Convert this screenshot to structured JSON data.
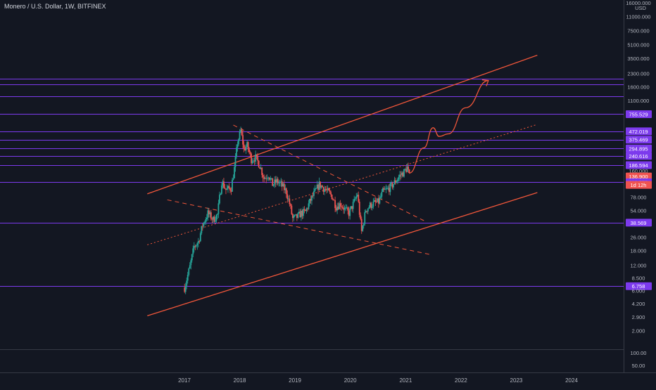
{
  "header": {
    "symbol_title": "Monero / U.S. Dollar, 1W, BITFINEX",
    "currency": "USD"
  },
  "colors": {
    "background": "#131722",
    "up_candle": "#26a69a",
    "down_candle": "#ef5350",
    "trendline": "#f0563a",
    "level_line": "#7c3aed",
    "level_badge": "#7c3aed",
    "price_badge": "#ef5350",
    "axis_text": "#b2b5be",
    "title_text": "#d1d4dc"
  },
  "chart_data": {
    "type": "candlestick",
    "title": "Monero / U.S. Dollar, 1W, BITFINEX",
    "y_scale": "log",
    "y_unit": "USD",
    "ylim": [
      1.6,
      16000
    ],
    "xlim": [
      "2016-05-01",
      "2024-12-31"
    ],
    "y_tick_labels": [
      "16000.000",
      "11000.000",
      "7500.000",
      "5100.000",
      "3500.000",
      "2300.000",
      "1600.000",
      "1100.000",
      "755.529",
      "472.019",
      "375.469",
      "294.895",
      "240.616",
      "186.594",
      "160.000",
      "136.900",
      "116.575",
      "78.000",
      "54.000",
      "38.569",
      "26.000",
      "18.000",
      "12.000",
      "8.500",
      "6.758",
      "6.000",
      "4.200",
      "2.900",
      "2.000"
    ],
    "x_tick_labels": [
      "2017",
      "2018",
      "2019",
      "2020",
      "2021",
      "2022",
      "2023",
      "2024"
    ],
    "volume_axis_labels": [
      "100.00",
      "50.00"
    ],
    "horizontal_levels": [
      1985.535,
      1704.593,
      1224.798,
      755.529,
      472.019,
      375.469,
      294.895,
      240.616,
      186.594,
      116.575,
      38.569,
      6.758
    ],
    "last_price": "136.900",
    "countdown": "1d 12h",
    "price_path": [
      [
        "2017-01-02",
        6.5
      ],
      [
        "2017-02-06",
        11.5
      ],
      [
        "2017-03-06",
        20
      ],
      [
        "2017-04-03",
        23
      ],
      [
        "2017-05-01",
        36
      ],
      [
        "2017-06-05",
        50
      ],
      [
        "2017-07-10",
        42
      ],
      [
        "2017-08-07",
        48
      ],
      [
        "2017-09-04",
        120
      ],
      [
        "2017-10-02",
        95
      ],
      [
        "2017-11-06",
        100
      ],
      [
        "2017-11-27",
        170
      ],
      [
        "2017-12-18",
        350
      ],
      [
        "2018-01-08",
        480
      ],
      [
        "2018-01-29",
        290
      ],
      [
        "2018-02-19",
        320
      ],
      [
        "2018-03-19",
        220
      ],
      [
        "2018-04-16",
        230
      ],
      [
        "2018-05-14",
        185
      ],
      [
        "2018-06-11",
        130
      ],
      [
        "2018-07-09",
        145
      ],
      [
        "2018-08-06",
        110
      ],
      [
        "2018-09-03",
        120
      ],
      [
        "2018-10-01",
        110
      ],
      [
        "2018-11-05",
        90
      ],
      [
        "2018-11-26",
        65
      ],
      [
        "2018-12-17",
        43
      ],
      [
        "2019-01-14",
        45
      ],
      [
        "2019-02-11",
        50
      ],
      [
        "2019-03-11",
        52
      ],
      [
        "2019-04-08",
        68
      ],
      [
        "2019-05-06",
        85
      ],
      [
        "2019-06-10",
        110
      ],
      [
        "2019-07-08",
        100
      ],
      [
        "2019-08-05",
        90
      ],
      [
        "2019-09-02",
        80
      ],
      [
        "2019-09-30",
        60
      ],
      [
        "2019-10-28",
        65
      ],
      [
        "2019-11-25",
        56
      ],
      [
        "2019-12-23",
        50
      ],
      [
        "2020-01-27",
        68
      ],
      [
        "2020-02-17",
        85
      ],
      [
        "2020-03-16",
        30
      ],
      [
        "2020-04-13",
        55
      ],
      [
        "2020-05-11",
        62
      ],
      [
        "2020-06-08",
        66
      ],
      [
        "2020-07-06",
        68
      ],
      [
        "2020-08-03",
        90
      ],
      [
        "2020-08-31",
        95
      ],
      [
        "2020-09-28",
        105
      ],
      [
        "2020-10-26",
        120
      ],
      [
        "2020-11-23",
        140
      ],
      [
        "2020-12-21",
        155
      ],
      [
        "2021-01-11",
        175
      ],
      [
        "2021-01-25",
        137
      ]
    ],
    "trendlines": [
      {
        "style": "solid",
        "from": [
          "2016-05-01",
          85
        ],
        "to": [
          "2023-05-20",
          3800
        ]
      },
      {
        "style": "solid",
        "from": [
          "2016-05-01",
          3
        ],
        "to": [
          "2023-05-20",
          88
        ]
      },
      {
        "style": "dashed",
        "from": [
          "2017-11-20",
          560
        ],
        "to": [
          "2021-05-10",
          40
        ]
      },
      {
        "style": "dashed",
        "from": [
          "2016-09-10",
          72
        ],
        "to": [
          "2021-06-20",
          16
        ]
      },
      {
        "style": "dotted",
        "from": [
          "2016-05-01",
          21
        ],
        "to": [
          "2023-05-20",
          570
        ]
      }
    ],
    "projection_path": [
      [
        "2021-01-25",
        150
      ],
      [
        "2021-05-01",
        300
      ],
      [
        "2021-07-01",
        520
      ],
      [
        "2021-08-10",
        410
      ],
      [
        "2021-10-10",
        440
      ],
      [
        "2022-02-01",
        900
      ],
      [
        "2022-07-01",
        1900
      ]
    ]
  }
}
